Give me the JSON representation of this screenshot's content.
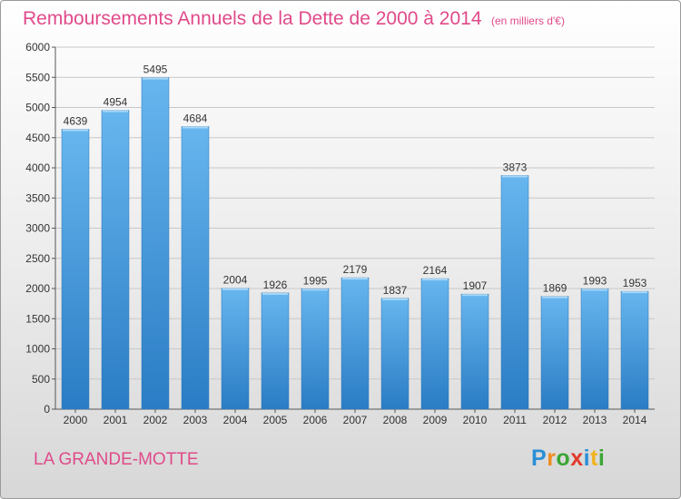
{
  "title": "Remboursements Annuels de la Dette de 2000 à 2014",
  "unit": "(en milliers d'€)",
  "commune": "LA GRANDE-MOTTE",
  "logo": {
    "letters": [
      "P",
      "r",
      "o",
      "x",
      "i",
      "t",
      "i"
    ],
    "colors": [
      "#2a8fd6",
      "#f08c1e",
      "#3aa635",
      "#e23a2a",
      "#2a8fd6",
      "#f0b31e",
      "#3aa635"
    ]
  },
  "colors": {
    "bar_top": "#67b6ef",
    "bar_bottom": "#2a7cc4",
    "title": "#e04a8a"
  },
  "chart_data": {
    "type": "bar",
    "categories": [
      "2000",
      "2001",
      "2002",
      "2003",
      "2004",
      "2005",
      "2006",
      "2007",
      "2008",
      "2009",
      "2010",
      "2011",
      "2012",
      "2013",
      "2014"
    ],
    "values": [
      4639,
      4954,
      5495,
      4684,
      2004,
      1926,
      1995,
      2179,
      1837,
      2164,
      1907,
      3873,
      1869,
      1993,
      1953
    ],
    "yticks": [
      0,
      500,
      1000,
      1500,
      2000,
      2500,
      3000,
      3500,
      4000,
      4500,
      5000,
      5500,
      6000
    ],
    "ylim": [
      0,
      6000
    ],
    "grid": true,
    "legend": "none"
  }
}
